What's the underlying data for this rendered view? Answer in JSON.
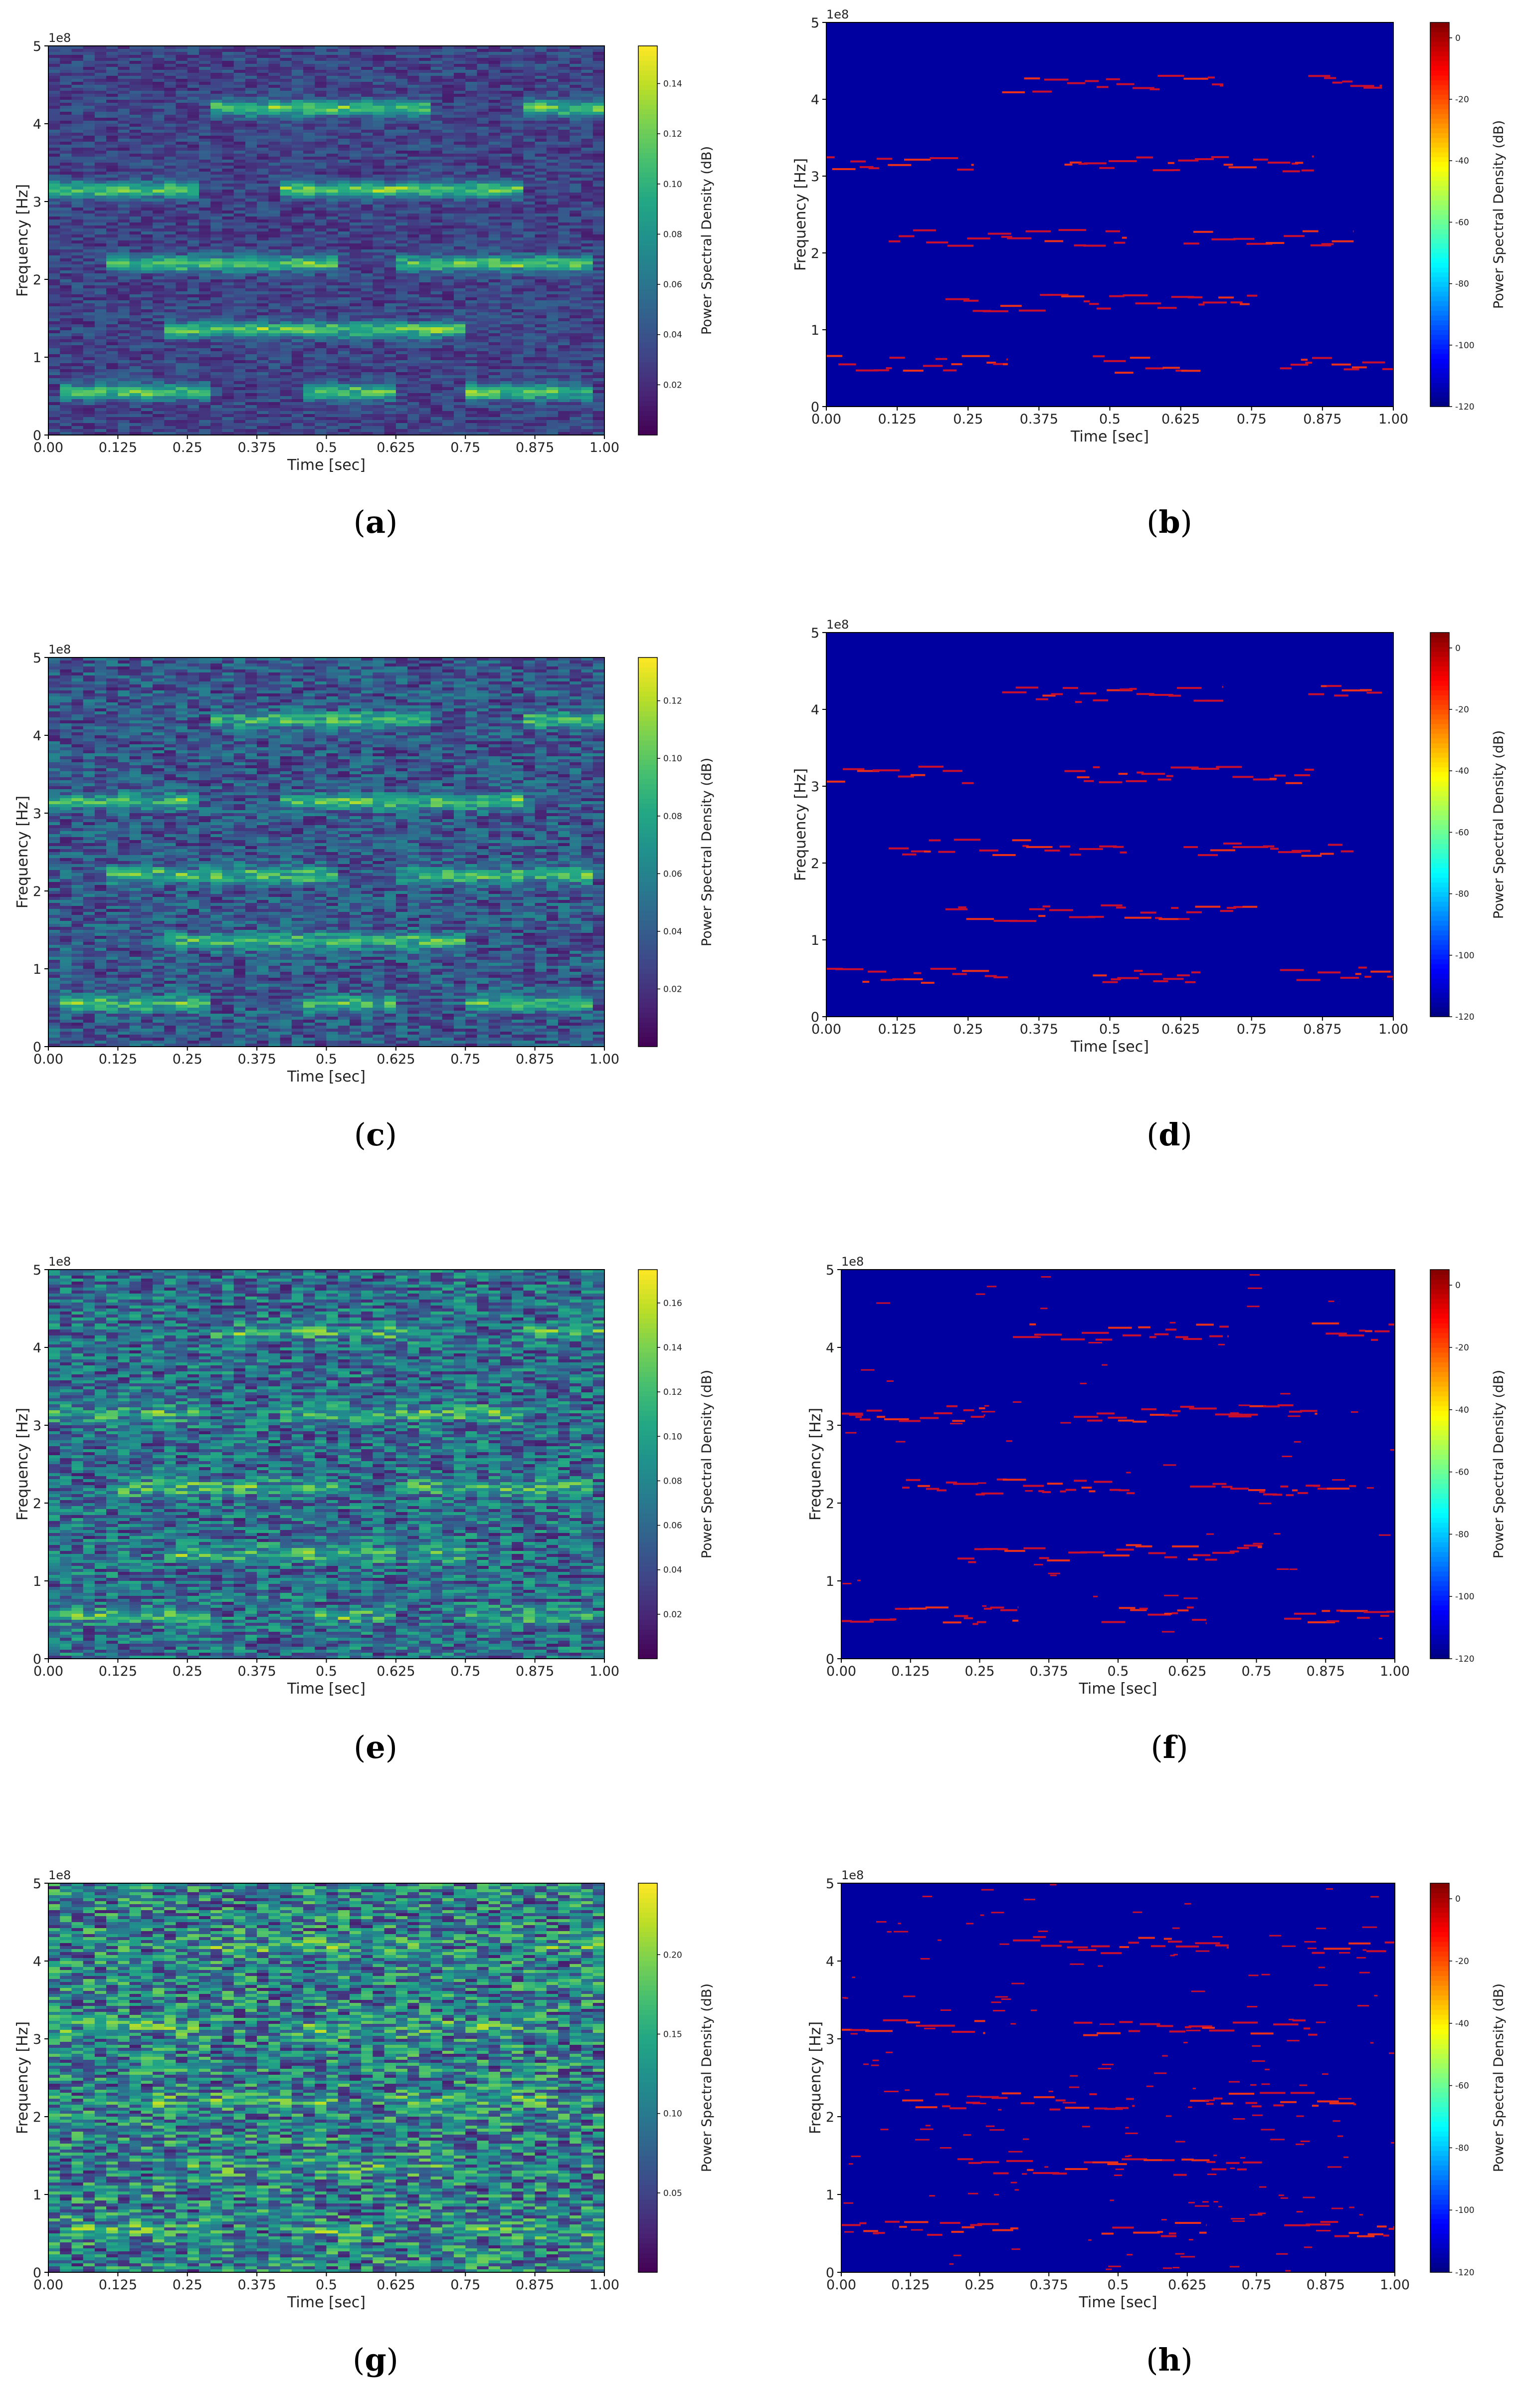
{
  "subfigure_labels": [
    "(a)",
    "(b)",
    "(c)",
    "(d)",
    "(e)",
    "(f)",
    "(g)",
    "(h)"
  ],
  "chart_data": [
    {
      "id": "a",
      "type": "heatmap",
      "colormap": "viridis",
      "xlabel": "Time [sec]",
      "ylabel": "Frequency [Hz]",
      "offset_label": "1e8",
      "xticks": [
        "0.00",
        "0.125",
        "0.25",
        "0.375",
        "0.5",
        "0.625",
        "0.75",
        "0.875",
        "1.00"
      ],
      "yticks": [
        "0",
        "1",
        "2",
        "3",
        "4",
        "5"
      ],
      "xlim": [
        0,
        1
      ],
      "ylim": [
        0,
        5
      ],
      "colorbar": {
        "label": "Power Spectral Density (dB)",
        "range": [
          0.0,
          0.155
        ],
        "ticks": [
          "0.02",
          "0.04",
          "0.06",
          "0.08",
          "0.10",
          "0.12",
          "0.14"
        ]
      },
      "signal_tracks": [
        {
          "freq": 4.2,
          "segments": [
            [
              0.3,
              0.68
            ],
            [
              0.85,
              1.0
            ]
          ]
        },
        {
          "freq": 3.15,
          "segments": [
            [
              0.0,
              0.27
            ],
            [
              0.42,
              0.85
            ]
          ]
        },
        {
          "freq": 2.2,
          "segments": [
            [
              0.1,
              0.52
            ],
            [
              0.62,
              0.97
            ]
          ]
        },
        {
          "freq": 1.35,
          "segments": [
            [
              0.2,
              0.74
            ]
          ]
        },
        {
          "freq": 0.55,
          "segments": [
            [
              0.02,
              0.3
            ],
            [
              0.45,
              0.62
            ],
            [
              0.75,
              0.97
            ]
          ]
        }
      ],
      "signal_strength": 0.9,
      "noise_level": 0.25
    },
    {
      "id": "b",
      "type": "heatmap",
      "colormap": "jet",
      "xlabel": "Time [sec]",
      "ylabel": "Frequency [Hz]",
      "offset_label": "1e8",
      "xticks": [
        "0.00",
        "0.125",
        "0.25",
        "0.375",
        "0.5",
        "0.625",
        "0.75",
        "0.875",
        "1.00"
      ],
      "yticks": [
        "0",
        "1",
        "2",
        "3",
        "4",
        "5"
      ],
      "xlim": [
        0,
        1
      ],
      "ylim": [
        0,
        5
      ],
      "colorbar": {
        "label": "Power Spectral Density (dB)",
        "range": [
          -120,
          5
        ],
        "ticks": [
          "0",
          "-20",
          "-40",
          "-60",
          "-80",
          "-100",
          "-120"
        ]
      },
      "signal_tracks": [
        {
          "freq": 4.2,
          "segments": [
            [
              0.31,
              0.7
            ],
            [
              0.85,
              0.98
            ]
          ]
        },
        {
          "freq": 3.15,
          "segments": [
            [
              0.0,
              0.26
            ],
            [
              0.42,
              0.86
            ]
          ]
        },
        {
          "freq": 2.2,
          "segments": [
            [
              0.11,
              0.53
            ],
            [
              0.63,
              0.93
            ]
          ]
        },
        {
          "freq": 1.35,
          "segments": [
            [
              0.21,
              0.76
            ]
          ]
        },
        {
          "freq": 0.55,
          "segments": [
            [
              0.0,
              0.32
            ],
            [
              0.47,
              0.66
            ],
            [
              0.8,
              1.0
            ]
          ]
        }
      ],
      "speckle": 0.0
    },
    {
      "id": "c",
      "type": "heatmap",
      "colormap": "viridis",
      "xlabel": "Time [sec]",
      "ylabel": "Frequency [Hz]",
      "offset_label": "1e8",
      "xticks": [
        "0.00",
        "0.125",
        "0.25",
        "0.375",
        "0.5",
        "0.625",
        "0.75",
        "0.875",
        "1.00"
      ],
      "yticks": [
        "0",
        "1",
        "2",
        "3",
        "4",
        "5"
      ],
      "xlim": [
        0,
        1
      ],
      "ylim": [
        0,
        5
      ],
      "colorbar": {
        "label": "Power Spectral Density (dB)",
        "range": [
          0.0,
          0.135
        ],
        "ticks": [
          "0.02",
          "0.04",
          "0.06",
          "0.08",
          "0.10",
          "0.12"
        ]
      },
      "signal_tracks": [
        {
          "freq": 4.2,
          "segments": [
            [
              0.3,
              0.68
            ],
            [
              0.85,
              1.0
            ]
          ]
        },
        {
          "freq": 3.15,
          "segments": [
            [
              0.0,
              0.27
            ],
            [
              0.42,
              0.85
            ]
          ]
        },
        {
          "freq": 2.2,
          "segments": [
            [
              0.1,
              0.52
            ],
            [
              0.62,
              0.97
            ]
          ]
        },
        {
          "freq": 1.35,
          "segments": [
            [
              0.2,
              0.74
            ]
          ]
        },
        {
          "freq": 0.55,
          "segments": [
            [
              0.02,
              0.3
            ],
            [
              0.45,
              0.62
            ],
            [
              0.75,
              0.97
            ]
          ]
        }
      ],
      "signal_strength": 0.7,
      "noise_level": 0.38
    },
    {
      "id": "d",
      "type": "heatmap",
      "colormap": "jet",
      "xlabel": "Time [sec]",
      "ylabel": "Frequency [Hz]",
      "offset_label": "1e8",
      "xticks": [
        "0.00",
        "0.125",
        "0.25",
        "0.375",
        "0.5",
        "0.625",
        "0.75",
        "0.875",
        "1.00"
      ],
      "yticks": [
        "0",
        "1",
        "2",
        "3",
        "4",
        "5"
      ],
      "xlim": [
        0,
        1
      ],
      "ylim": [
        0,
        5
      ],
      "colorbar": {
        "label": "Power Spectral Density (dB)",
        "range": [
          -120,
          5
        ],
        "ticks": [
          "0",
          "-20",
          "-40",
          "-60",
          "-80",
          "-100",
          "-120"
        ]
      },
      "signal_tracks": [
        {
          "freq": 4.2,
          "segments": [
            [
              0.31,
              0.7
            ],
            [
              0.85,
              0.98
            ]
          ]
        },
        {
          "freq": 3.15,
          "segments": [
            [
              0.0,
              0.26
            ],
            [
              0.42,
              0.86
            ]
          ]
        },
        {
          "freq": 2.2,
          "segments": [
            [
              0.11,
              0.53
            ],
            [
              0.63,
              0.93
            ]
          ]
        },
        {
          "freq": 1.35,
          "segments": [
            [
              0.21,
              0.76
            ]
          ]
        },
        {
          "freq": 0.55,
          "segments": [
            [
              0.0,
              0.32
            ],
            [
              0.47,
              0.66
            ],
            [
              0.8,
              1.0
            ]
          ]
        }
      ],
      "speckle": 0.0
    },
    {
      "id": "e",
      "type": "heatmap",
      "colormap": "viridis",
      "xlabel": "Time [sec]",
      "ylabel": "Frequency [Hz]",
      "offset_label": "1e8",
      "xticks": [
        "0.00",
        "0.125",
        "0.25",
        "0.375",
        "0.5",
        "0.625",
        "0.75",
        "0.875",
        "1.00"
      ],
      "yticks": [
        "0",
        "1",
        "2",
        "3",
        "4",
        "5"
      ],
      "xlim": [
        0,
        1
      ],
      "ylim": [
        0,
        5
      ],
      "colorbar": {
        "label": "Power Spectral Density (dB)",
        "range": [
          0.0,
          0.175
        ],
        "ticks": [
          "0.02",
          "0.04",
          "0.06",
          "0.08",
          "0.10",
          "0.12",
          "0.14",
          "0.16"
        ]
      },
      "signal_tracks": [
        {
          "freq": 4.2,
          "segments": [
            [
              0.3,
              0.68
            ],
            [
              0.85,
              1.0
            ]
          ]
        },
        {
          "freq": 3.15,
          "segments": [
            [
              0.0,
              0.27
            ],
            [
              0.42,
              0.85
            ]
          ]
        },
        {
          "freq": 2.2,
          "segments": [
            [
              0.1,
              0.52
            ],
            [
              0.62,
              0.97
            ]
          ]
        },
        {
          "freq": 1.35,
          "segments": [
            [
              0.2,
              0.74
            ]
          ]
        },
        {
          "freq": 0.55,
          "segments": [
            [
              0.02,
              0.3
            ],
            [
              0.45,
              0.62
            ],
            [
              0.75,
              0.97
            ]
          ]
        }
      ],
      "signal_strength": 0.45,
      "noise_level": 0.55
    },
    {
      "id": "f",
      "type": "heatmap",
      "colormap": "jet",
      "xlabel": "Time [sec]",
      "ylabel": "Frequency [Hz]",
      "offset_label": "1e8",
      "xticks": [
        "0.00",
        "0.125",
        "0.25",
        "0.375",
        "0.5",
        "0.625",
        "0.75",
        "0.875",
        "1.00"
      ],
      "yticks": [
        "0",
        "1",
        "2",
        "3",
        "4",
        "5"
      ],
      "xlim": [
        0,
        1
      ],
      "ylim": [
        0,
        5
      ],
      "colorbar": {
        "label": "Power Spectral Density (dB)",
        "range": [
          -120,
          5
        ],
        "ticks": [
          "0",
          "-20",
          "-40",
          "-60",
          "-80",
          "-100",
          "-120"
        ]
      },
      "signal_tracks": [
        {
          "freq": 4.2,
          "segments": [
            [
              0.31,
              0.7
            ],
            [
              0.85,
              1.0
            ]
          ]
        },
        {
          "freq": 3.15,
          "segments": [
            [
              0.0,
              0.26
            ],
            [
              0.42,
              0.86
            ]
          ]
        },
        {
          "freq": 2.2,
          "segments": [
            [
              0.11,
              0.53
            ],
            [
              0.63,
              0.93
            ]
          ]
        },
        {
          "freq": 1.35,
          "segments": [
            [
              0.21,
              0.76
            ]
          ]
        },
        {
          "freq": 0.55,
          "segments": [
            [
              0.0,
              0.32
            ],
            [
              0.47,
              0.66
            ],
            [
              0.8,
              1.0
            ]
          ]
        }
      ],
      "speckle": 0.15
    },
    {
      "id": "g",
      "type": "heatmap",
      "colormap": "viridis",
      "xlabel": "Time [sec]",
      "ylabel": "Frequency [Hz]",
      "offset_label": "1e8",
      "xticks": [
        "0.00",
        "0.125",
        "0.25",
        "0.375",
        "0.5",
        "0.625",
        "0.75",
        "0.875",
        "1.00"
      ],
      "yticks": [
        "0",
        "1",
        "2",
        "3",
        "4",
        "5"
      ],
      "xlim": [
        0,
        1
      ],
      "ylim": [
        0,
        5
      ],
      "colorbar": {
        "label": "Power Spectral Density (dB)",
        "range": [
          0.0,
          0.245
        ],
        "ticks": [
          "0.05",
          "0.10",
          "0.15",
          "0.20"
        ]
      },
      "signal_tracks": [
        {
          "freq": 4.2,
          "segments": [
            [
              0.3,
              0.68
            ],
            [
              0.85,
              1.0
            ]
          ]
        },
        {
          "freq": 3.15,
          "segments": [
            [
              0.0,
              0.27
            ],
            [
              0.42,
              0.85
            ]
          ]
        },
        {
          "freq": 2.2,
          "segments": [
            [
              0.1,
              0.52
            ],
            [
              0.62,
              0.97
            ]
          ]
        },
        {
          "freq": 1.35,
          "segments": [
            [
              0.2,
              0.74
            ]
          ]
        },
        {
          "freq": 0.55,
          "segments": [
            [
              0.02,
              0.3
            ],
            [
              0.45,
              0.62
            ],
            [
              0.75,
              0.97
            ]
          ]
        }
      ],
      "signal_strength": 0.25,
      "noise_level": 0.7
    },
    {
      "id": "h",
      "type": "heatmap",
      "colormap": "jet",
      "xlabel": "Time [sec]",
      "ylabel": "Frequency [Hz]",
      "offset_label": "1e8",
      "xticks": [
        "0.00",
        "0.125",
        "0.25",
        "0.375",
        "0.5",
        "0.625",
        "0.75",
        "0.875",
        "1.00"
      ],
      "yticks": [
        "0",
        "1",
        "2",
        "3",
        "4",
        "5"
      ],
      "xlim": [
        0,
        1
      ],
      "ylim": [
        0,
        5
      ],
      "colorbar": {
        "label": "Power Spectral Density (dB)",
        "range": [
          -120,
          5
        ],
        "ticks": [
          "0",
          "-20",
          "-40",
          "-60",
          "-80",
          "-100",
          "-120"
        ]
      },
      "signal_tracks": [
        {
          "freq": 4.2,
          "segments": [
            [
              0.31,
              0.7
            ],
            [
              0.85,
              1.0
            ]
          ]
        },
        {
          "freq": 3.15,
          "segments": [
            [
              0.0,
              0.26
            ],
            [
              0.42,
              0.86
            ]
          ]
        },
        {
          "freq": 2.2,
          "segments": [
            [
              0.11,
              0.53
            ],
            [
              0.63,
              0.93
            ]
          ]
        },
        {
          "freq": 1.35,
          "segments": [
            [
              0.21,
              0.76
            ]
          ]
        },
        {
          "freq": 0.55,
          "segments": [
            [
              0.0,
              0.32
            ],
            [
              0.47,
              0.66
            ],
            [
              0.8,
              1.0
            ]
          ]
        }
      ],
      "speckle": 0.45
    }
  ]
}
